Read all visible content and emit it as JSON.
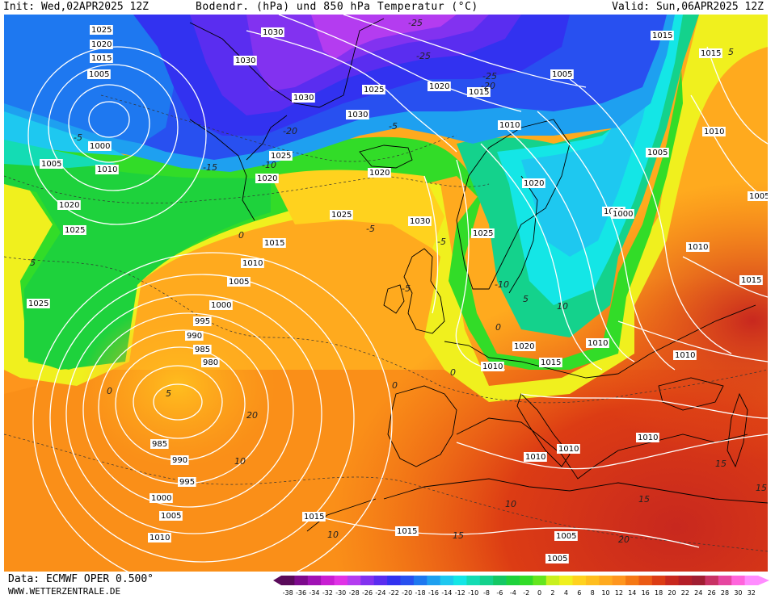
{
  "header": {
    "init": "Init: Wed,02APR2025 12Z",
    "title": "Bodendr. (hPa) und 850 hPa Temperatur (°C)",
    "valid": "Valid: Sun,06APR2025 12Z"
  },
  "footer": {
    "data_source": "Data: ECMWF OPER 0.500°",
    "website": "WWW.WETTERZENTRALE.DE"
  },
  "pressure_labels": [
    "1025",
    "1020",
    "1015",
    "1005",
    "1000",
    "1005",
    "1010",
    "1020",
    "1025",
    "1025",
    "1030",
    "1030",
    "1030",
    "1025",
    "1020",
    "1015",
    "1010",
    "1005",
    "1015",
    "1015",
    "1010",
    "1005",
    "1005",
    "1010",
    "1020",
    "1025",
    "1020",
    "1030",
    "1025",
    "1020",
    "1015",
    "1010",
    "1005",
    "1000",
    "995",
    "990",
    "985",
    "980",
    "1025",
    "1030",
    "1000",
    "1010",
    "1015",
    "1010",
    "1010",
    "1020",
    "1015",
    "1010",
    "985",
    "990",
    "995",
    "1000",
    "1005",
    "1010",
    "1015",
    "1015",
    "1010",
    "1010",
    "1010",
    "1005",
    "1005"
  ],
  "temperature_labels": [
    "-25",
    "-25",
    "-20",
    "-25",
    "-20",
    "-5",
    "-15",
    "-10",
    "-5",
    "5",
    "0",
    "5",
    "-5",
    "0",
    "10",
    "-5",
    "0",
    "-5",
    "10",
    "0",
    "-10",
    "5",
    "5",
    "0",
    "15",
    "10",
    "15",
    "20",
    "15",
    "10",
    "15",
    "20"
  ],
  "colorbar": {
    "values": [
      "-38",
      "-36",
      "-34",
      "-32",
      "-30",
      "-28",
      "-26",
      "-24",
      "-22",
      "-20",
      "-18",
      "-16",
      "-14",
      "-12",
      "-10",
      "-8",
      "-6",
      "-4",
      "-2",
      "0",
      "2",
      "4",
      "6",
      "8",
      "10",
      "12",
      "14",
      "16",
      "18",
      "20",
      "22",
      "24",
      "26",
      "28",
      "30",
      "32"
    ],
    "colors": [
      "#5a0a5a",
      "#7d0a8c",
      "#a012b4",
      "#c81ed2",
      "#e032e6",
      "#b43cf0",
      "#8232f0",
      "#5a2df0",
      "#3232f0",
      "#2850f0",
      "#1e78f0",
      "#1ea0f0",
      "#1ec8f0",
      "#14e6e6",
      "#14dcb4",
      "#14d28c",
      "#14c864",
      "#1ed23c",
      "#32dc28",
      "#64e61e",
      "#c8f01e",
      "#f0f01e",
      "#ffd21e",
      "#ffbe1e",
      "#ffaa1e",
      "#ff961e",
      "#f57814",
      "#eb5a14",
      "#dc3c14",
      "#c8281e",
      "#b41e28",
      "#a01e32",
      "#c83264",
      "#e646a0",
      "#ff64dc",
      "#ff8cff"
    ]
  }
}
